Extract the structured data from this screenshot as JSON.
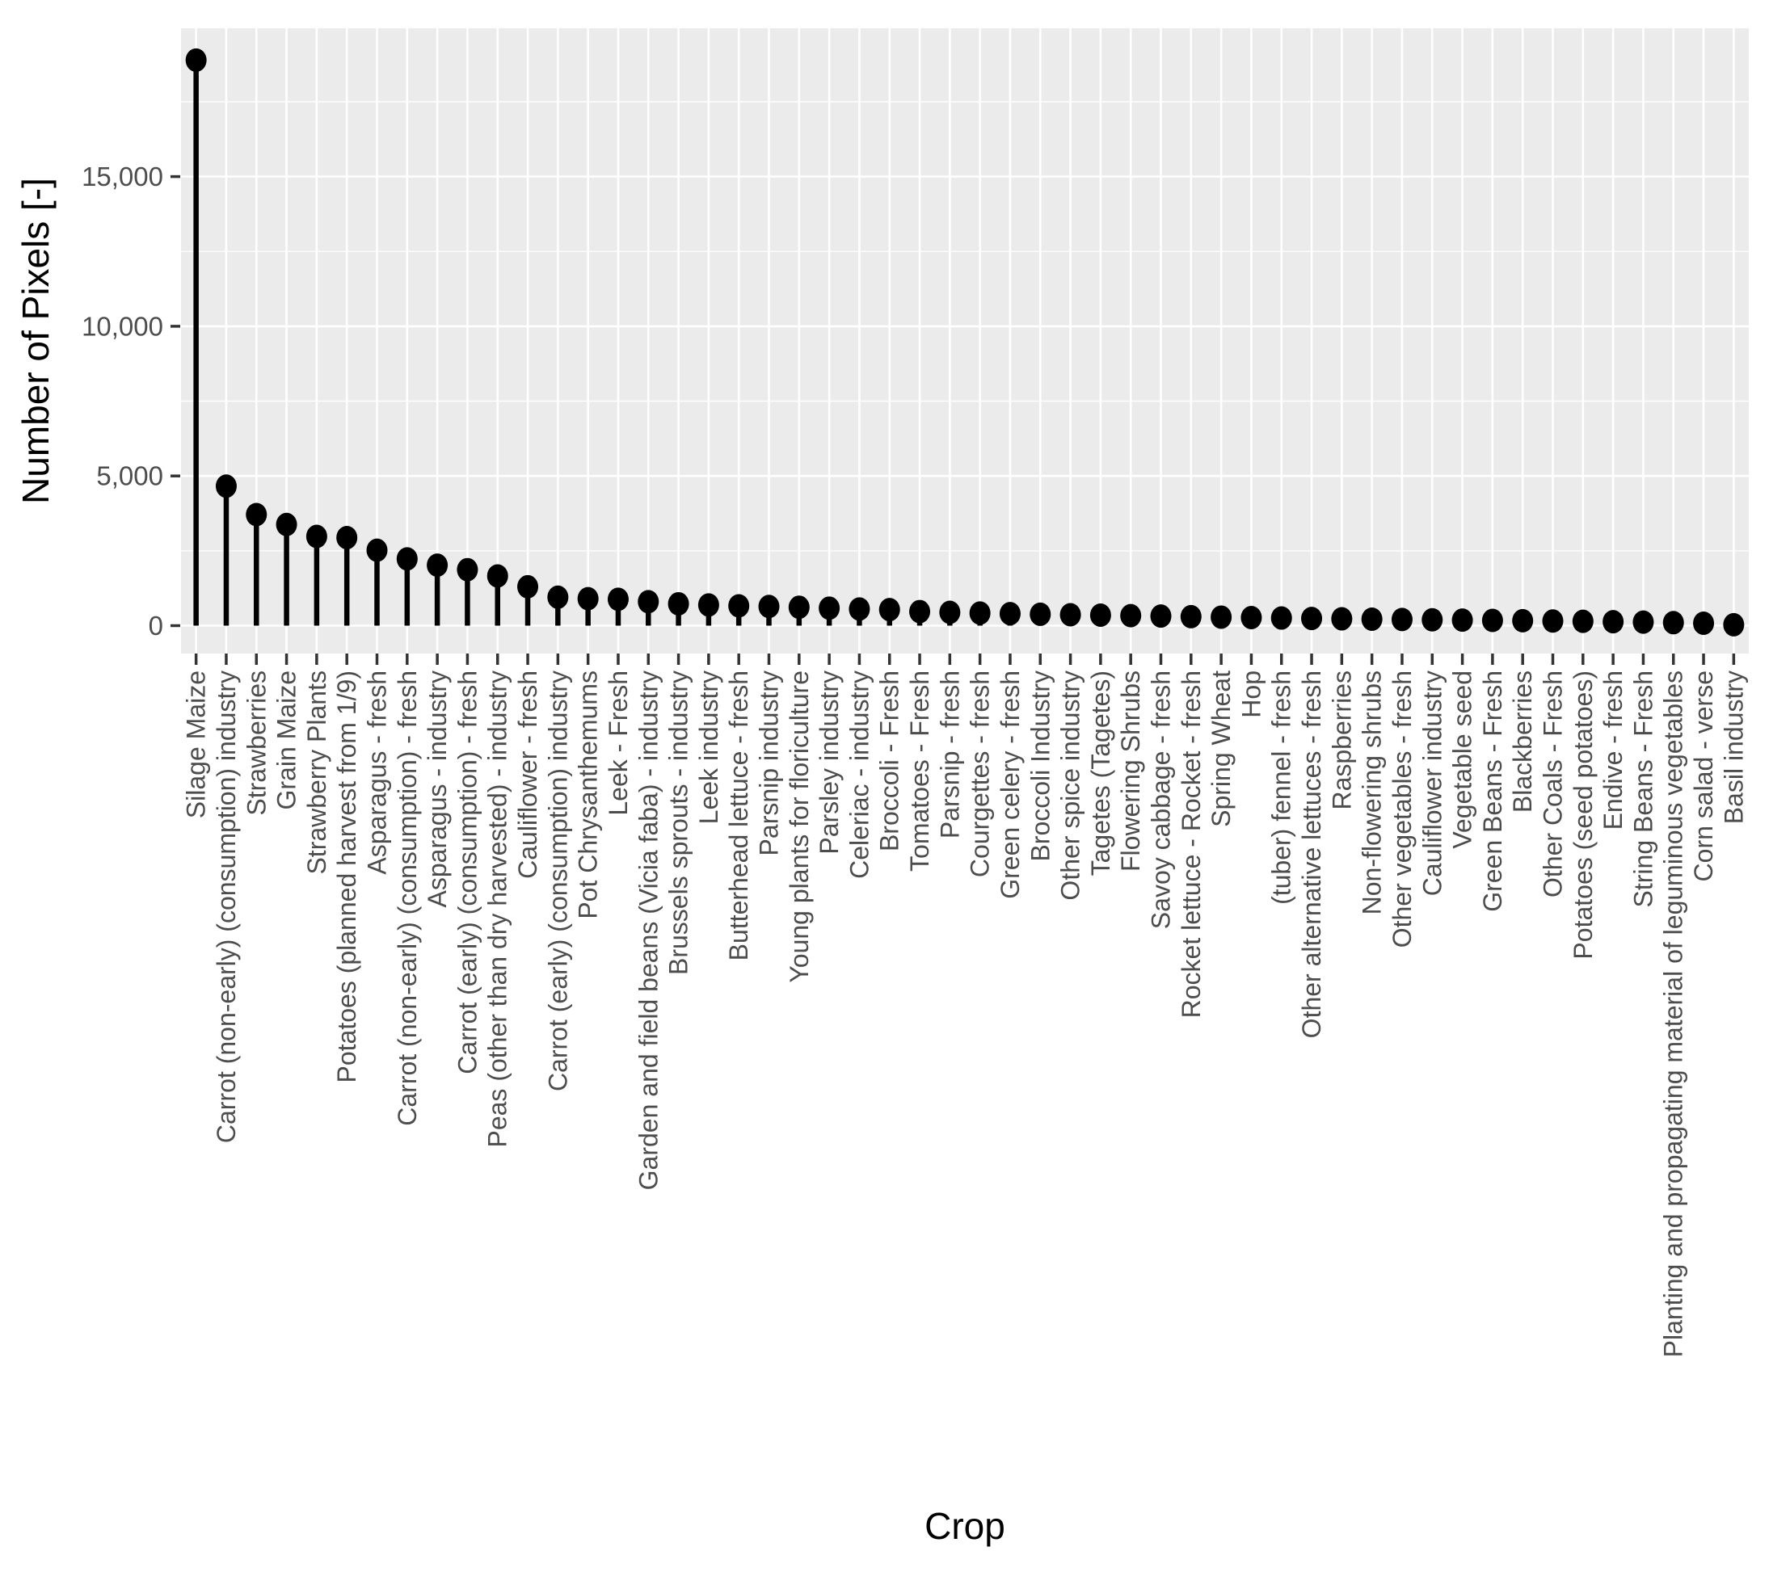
{
  "chart_data": {
    "type": "bar",
    "variant": "lollipop",
    "title": "",
    "xlabel": "Crop",
    "ylabel": "Number of Pixels [-]",
    "ylim": [
      0,
      19800
    ],
    "grid": true,
    "legend": "none",
    "yticks": {
      "values": [
        0,
        5000,
        10000,
        15000
      ],
      "labels": [
        "0",
        "5,000",
        "10,000",
        "15,000"
      ]
    },
    "y_minor_gridlines": [
      2500,
      7500,
      12500,
      17500
    ],
    "categories": [
      "Silage Maize",
      "Carrot (non-early) (consumption) industry",
      "Strawberries",
      "Grain Maize",
      "Strawberry Plants",
      "Potatoes (planned harvest from 1/9)",
      "Asparagus - fresh",
      "Carrot (non-early) (consumption) - fresh",
      "Asparagus - industry",
      "Carrot (early) (consumption) - fresh",
      "Peas (other than dry harvested) - industry",
      "Cauliflower - fresh",
      "Carrot (early) (consumption) industry",
      "Pot Chrysanthemums",
      "Leek - Fresh",
      "Garden and field beans (Vicia faba) - industry",
      "Brussels sprouts - industry",
      "Leek industry",
      "Butterhead lettuce - fresh",
      "Parsnip industry",
      "Young plants for floriculture",
      "Parsley industry",
      "Celeriac - industry",
      "Broccoli - Fresh",
      "Tomatoes - Fresh",
      "Parsnip - fresh",
      "Courgettes - fresh",
      "Green celery - fresh",
      "Broccoli Industry",
      "Other spice industry",
      "Tagetes (Tagetes)",
      "Flowering Shrubs",
      "Savoy cabbage - fresh",
      "Rocket lettuce - Rocket - fresh",
      "Spring Wheat",
      "Hop",
      "(tuber) fennel - fresh",
      "Other alternative lettuces - fresh",
      "Raspberries",
      "Non-flowering shrubs",
      "Other vegetables - fresh",
      "Cauliflower industry",
      "Vegetable seed",
      "Green Beans - Fresh",
      "Blackberries",
      "Other Coals - Fresh",
      "Potatoes (seed potatoes)",
      "Endive - fresh",
      "String Beans - Fresh",
      "Planting and propagating material of leguminous vegetables",
      "Corn salad - verse",
      "Basil industry"
    ],
    "values": [
      18890,
      4660,
      3710,
      3380,
      2980,
      2940,
      2520,
      2230,
      2020,
      1870,
      1660,
      1300,
      950,
      900,
      880,
      800,
      730,
      690,
      660,
      640,
      615,
      585,
      555,
      535,
      470,
      445,
      420,
      400,
      380,
      365,
      350,
      335,
      320,
      300,
      285,
      270,
      255,
      240,
      228,
      216,
      205,
      195,
      185,
      175,
      165,
      155,
      145,
      132,
      118,
      100,
      80,
      30
    ],
    "colors": {
      "page_background": "#FFFFFF",
      "panel_background": "#EBEBEB",
      "gridline": "#FFFFFF",
      "stem": "#000000",
      "point": "#000000",
      "tick_mark": "#333333",
      "tick_label": "#4D4D4D",
      "axis_title": "#000000"
    }
  }
}
